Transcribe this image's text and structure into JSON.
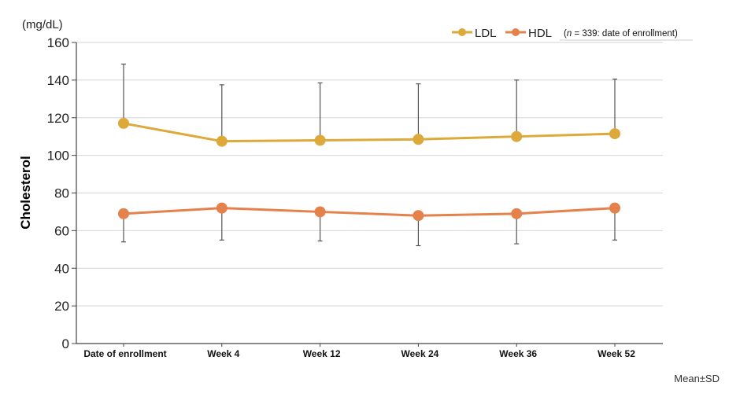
{
  "chart_data": {
    "type": "line",
    "title": "",
    "ylabel": "Cholesterol",
    "yunit": "(mg/dL)",
    "xlabel": "",
    "ylim": [
      0,
      160
    ],
    "yticks": [
      "0",
      "20",
      "40",
      "60",
      "80",
      "100",
      "120",
      "140",
      "160"
    ],
    "ytick_values": [
      0,
      20,
      40,
      60,
      80,
      100,
      120,
      140,
      160
    ],
    "grid": true,
    "categories": [
      "Date of enrollment",
      "Week 4",
      "Week 12",
      "Week 24",
      "Week 36",
      "Week 52"
    ],
    "series": [
      {
        "name": "LDL",
        "color": "#DDA93A",
        "values": [
          117,
          107.5,
          108,
          108.5,
          110,
          111.5
        ],
        "sd_upper": [
          148.5,
          137.5,
          138.5,
          138,
          140,
          140.5
        ],
        "sd_lower": [
          117,
          107.5,
          108,
          108.5,
          110,
          111.5
        ]
      },
      {
        "name": "HDL",
        "color": "#E5814B",
        "values": [
          69,
          72,
          70,
          68,
          69,
          72
        ],
        "sd_upper": [
          69,
          72,
          70,
          68,
          69,
          72
        ],
        "sd_lower": [
          54,
          55,
          54.5,
          52,
          53,
          55
        ]
      }
    ],
    "legend_position": "top-right",
    "annotation": {
      "n_prefix": "(",
      "n_symbol": "n",
      "n_rest": " = 339: date of enrollment)"
    },
    "footnote": "Mean±SD",
    "errorbar_color": "#555555",
    "grid_color": "#D6D6D6",
    "axis_color": "#444444"
  }
}
